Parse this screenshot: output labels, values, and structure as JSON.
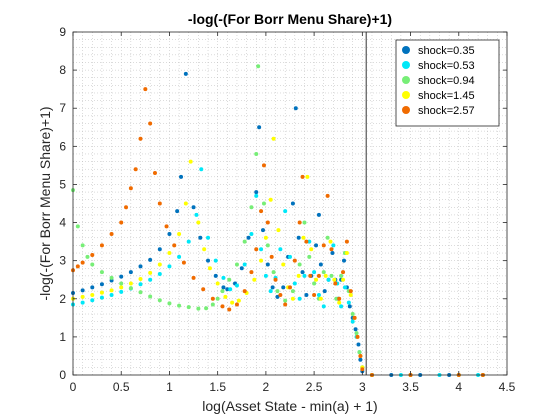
{
  "chart_data": {
    "type": "scatter",
    "title": "-log(-(For Borr Menu Share)+1)",
    "xlabel": "log(Asset State - min(a) + 1)",
    "ylabel": "-log(-(For Borr Menu Share)+1)",
    "xlim": [
      0,
      4.5
    ],
    "ylim": [
      0,
      9
    ],
    "xticks": [
      "0",
      "0.5",
      "1",
      "1.5",
      "2",
      "2.5",
      "3",
      "3.5",
      "4",
      "4.5"
    ],
    "yticks": [
      "0",
      "1",
      "2",
      "3",
      "4",
      "5",
      "6",
      "7",
      "8",
      "9"
    ],
    "grid": "minor dotted",
    "legend_position": "top-right",
    "reference_line_x": 3.04,
    "series": [
      {
        "name": "shock=0.35",
        "color": "#0072BD",
        "points": [
          [
            0.0,
            2.15
          ],
          [
            0.1,
            2.22
          ],
          [
            0.2,
            2.3
          ],
          [
            0.3,
            2.38
          ],
          [
            0.4,
            2.48
          ],
          [
            0.5,
            2.58
          ],
          [
            0.6,
            2.7
          ],
          [
            0.7,
            2.85
          ],
          [
            0.8,
            3.02
          ],
          [
            0.9,
            3.3
          ],
          [
            1.0,
            3.7
          ],
          [
            1.08,
            4.3
          ],
          [
            1.12,
            5.2
          ],
          [
            1.17,
            7.9
          ],
          [
            1.25,
            4.4
          ],
          [
            1.32,
            3.6
          ],
          [
            1.4,
            3.0
          ],
          [
            1.48,
            2.6
          ],
          [
            1.56,
            2.3
          ],
          [
            1.6,
            2.25
          ],
          [
            1.68,
            2.4
          ],
          [
            1.75,
            2.8
          ],
          [
            1.82,
            3.6
          ],
          [
            1.9,
            4.8
          ],
          [
            1.93,
            6.5
          ],
          [
            1.97,
            3.8
          ],
          [
            2.02,
            2.9
          ],
          [
            2.07,
            2.3
          ],
          [
            2.12,
            2.05
          ],
          [
            2.18,
            2.3
          ],
          [
            2.23,
            3.1
          ],
          [
            2.28,
            4.5
          ],
          [
            2.31,
            7.0
          ],
          [
            2.34,
            3.6
          ],
          [
            2.38,
            2.7
          ],
          [
            2.42,
            2.1
          ],
          [
            2.47,
            2.6
          ],
          [
            2.52,
            3.4
          ],
          [
            2.55,
            4.2
          ],
          [
            2.57,
            2.9
          ],
          [
            2.61,
            2.2
          ],
          [
            2.65,
            2.5
          ],
          [
            2.69,
            3.2
          ],
          [
            2.72,
            2.5
          ],
          [
            2.75,
            2.0
          ],
          [
            2.78,
            2.5
          ],
          [
            2.81,
            3.0
          ],
          [
            2.84,
            2.3
          ],
          [
            2.87,
            1.8
          ],
          [
            2.9,
            1.5
          ],
          [
            2.93,
            1.2
          ],
          [
            2.96,
            0.8
          ],
          [
            2.98,
            0.4
          ],
          [
            3.0,
            0.1
          ],
          [
            3.1,
            0.0
          ],
          [
            3.3,
            0.0
          ],
          [
            3.6,
            0.0
          ],
          [
            3.9,
            0.0
          ],
          [
            4.25,
            0.0
          ]
        ]
      },
      {
        "name": "shock=0.53",
        "color": "#00E8F8",
        "points": [
          [
            0.0,
            1.85
          ],
          [
            0.1,
            1.9
          ],
          [
            0.2,
            1.96
          ],
          [
            0.3,
            2.03
          ],
          [
            0.4,
            2.1
          ],
          [
            0.5,
            2.18
          ],
          [
            0.6,
            2.27
          ],
          [
            0.7,
            2.38
          ],
          [
            0.8,
            2.5
          ],
          [
            0.9,
            2.65
          ],
          [
            1.0,
            2.85
          ],
          [
            1.1,
            3.1
          ],
          [
            1.2,
            3.5
          ],
          [
            1.28,
            4.2
          ],
          [
            1.33,
            5.4
          ],
          [
            1.4,
            3.6
          ],
          [
            1.48,
            3.0
          ],
          [
            1.56,
            2.55
          ],
          [
            1.63,
            2.25
          ],
          [
            1.7,
            2.35
          ],
          [
            1.78,
            2.9
          ],
          [
            1.85,
            3.7
          ],
          [
            1.9,
            4.7
          ],
          [
            1.95,
            3.3
          ],
          [
            2.0,
            2.6
          ],
          [
            2.05,
            2.2
          ],
          [
            2.1,
            2.55
          ],
          [
            2.15,
            3.3
          ],
          [
            2.2,
            4.3
          ],
          [
            2.25,
            3.1
          ],
          [
            2.3,
            2.4
          ],
          [
            2.35,
            2.0
          ],
          [
            2.4,
            2.6
          ],
          [
            2.45,
            3.5
          ],
          [
            2.5,
            2.7
          ],
          [
            2.55,
            2.1
          ],
          [
            2.6,
            1.8
          ],
          [
            2.65,
            2.5
          ],
          [
            2.7,
            3.4
          ],
          [
            2.74,
            2.4
          ],
          [
            2.78,
            1.8
          ],
          [
            2.82,
            2.3
          ],
          [
            2.86,
            1.9
          ],
          [
            2.9,
            1.4
          ],
          [
            2.94,
            1.0
          ],
          [
            2.97,
            0.6
          ],
          [
            3.0,
            0.2
          ],
          [
            3.1,
            0.0
          ],
          [
            3.4,
            0.0
          ],
          [
            3.8,
            0.0
          ],
          [
            4.2,
            0.0
          ]
        ]
      },
      {
        "name": "shock=0.94",
        "color": "#77EE77",
        "points": [
          [
            0.0,
            4.85
          ],
          [
            0.05,
            3.9
          ],
          [
            0.1,
            3.4
          ],
          [
            0.15,
            3.1
          ],
          [
            0.2,
            2.9
          ],
          [
            0.3,
            2.7
          ],
          [
            0.4,
            2.55
          ],
          [
            0.5,
            2.4
          ],
          [
            0.6,
            2.28
          ],
          [
            0.7,
            2.17
          ],
          [
            0.8,
            2.06
          ],
          [
            0.9,
            1.96
          ],
          [
            1.0,
            1.88
          ],
          [
            1.1,
            1.82
          ],
          [
            1.2,
            1.78
          ],
          [
            1.3,
            1.74
          ],
          [
            1.38,
            1.75
          ],
          [
            1.45,
            1.85
          ],
          [
            1.5,
            2.0
          ],
          [
            1.55,
            2.2
          ],
          [
            1.62,
            2.5
          ],
          [
            1.7,
            2.9
          ],
          [
            1.78,
            3.5
          ],
          [
            1.85,
            4.4
          ],
          [
            1.9,
            5.8
          ],
          [
            1.92,
            8.1
          ],
          [
            1.98,
            4.5
          ],
          [
            2.02,
            3.4
          ],
          [
            2.08,
            2.7
          ],
          [
            2.12,
            2.2
          ],
          [
            2.2,
            1.95
          ],
          [
            2.28,
            2.2
          ],
          [
            2.35,
            2.9
          ],
          [
            2.4,
            4.0
          ],
          [
            2.45,
            3.1
          ],
          [
            2.5,
            2.4
          ],
          [
            2.55,
            2.0
          ],
          [
            2.6,
            2.7
          ],
          [
            2.64,
            3.6
          ],
          [
            2.68,
            2.6
          ],
          [
            2.73,
            2.0
          ],
          [
            2.78,
            2.6
          ],
          [
            2.82,
            3.2
          ],
          [
            2.86,
            2.2
          ],
          [
            2.9,
            1.6
          ],
          [
            2.94,
            1.1
          ],
          [
            2.97,
            0.6
          ],
          [
            3.0,
            0.2
          ],
          [
            3.1,
            0.0
          ],
          [
            3.5,
            0.0
          ],
          [
            4.0,
            0.0
          ],
          [
            4.25,
            0.0
          ]
        ]
      },
      {
        "name": "shock=1.45",
        "color": "#FFFF00",
        "points": [
          [
            0.0,
            2.0
          ],
          [
            0.1,
            2.05
          ],
          [
            0.2,
            2.1
          ],
          [
            0.3,
            2.16
          ],
          [
            0.4,
            2.22
          ],
          [
            0.5,
            2.3
          ],
          [
            0.6,
            2.4
          ],
          [
            0.7,
            2.52
          ],
          [
            0.8,
            2.68
          ],
          [
            0.9,
            2.9
          ],
          [
            1.0,
            3.2
          ],
          [
            1.1,
            3.7
          ],
          [
            1.17,
            4.5
          ],
          [
            1.22,
            5.6
          ],
          [
            1.3,
            4.0
          ],
          [
            1.36,
            3.3
          ],
          [
            1.42,
            2.8
          ],
          [
            1.5,
            2.4
          ],
          [
            1.58,
            2.05
          ],
          [
            1.65,
            1.9
          ],
          [
            1.72,
            1.95
          ],
          [
            1.8,
            2.15
          ],
          [
            1.88,
            2.5
          ],
          [
            1.95,
            3.0
          ],
          [
            2.0,
            3.6
          ],
          [
            2.05,
            4.6
          ],
          [
            2.08,
            6.2
          ],
          [
            2.13,
            3.8
          ],
          [
            2.18,
            2.9
          ],
          [
            2.23,
            2.3
          ],
          [
            2.28,
            2.0
          ],
          [
            2.34,
            2.6
          ],
          [
            2.39,
            3.6
          ],
          [
            2.43,
            5.2
          ],
          [
            2.47,
            3.3
          ],
          [
            2.52,
            2.5
          ],
          [
            2.57,
            2.0
          ],
          [
            2.62,
            2.6
          ],
          [
            2.67,
            3.5
          ],
          [
            2.71,
            2.5
          ],
          [
            2.76,
            1.9
          ],
          [
            2.8,
            2.5
          ],
          [
            2.84,
            3.2
          ],
          [
            2.88,
            2.1
          ],
          [
            2.92,
            1.5
          ],
          [
            2.95,
            1.0
          ],
          [
            2.98,
            0.5
          ],
          [
            3.0,
            0.2
          ],
          [
            3.1,
            0.0
          ],
          [
            3.5,
            0.0
          ],
          [
            4.0,
            0.0
          ],
          [
            4.25,
            0.0
          ]
        ]
      },
      {
        "name": "shock=2.57",
        "color": "#F06B00",
        "points": [
          [
            0.0,
            2.75
          ],
          [
            0.05,
            2.85
          ],
          [
            0.1,
            2.95
          ],
          [
            0.2,
            3.15
          ],
          [
            0.3,
            3.4
          ],
          [
            0.4,
            3.7
          ],
          [
            0.5,
            4.0
          ],
          [
            0.55,
            4.4
          ],
          [
            0.6,
            4.9
          ],
          [
            0.65,
            5.4
          ],
          [
            0.7,
            6.2
          ],
          [
            0.75,
            7.5
          ],
          [
            0.8,
            6.6
          ],
          [
            0.85,
            5.3
          ],
          [
            0.9,
            4.5
          ],
          [
            0.97,
            3.9
          ],
          [
            1.05,
            3.4
          ],
          [
            1.15,
            2.95
          ],
          [
            1.25,
            2.55
          ],
          [
            1.35,
            2.25
          ],
          [
            1.45,
            2.0
          ],
          [
            1.55,
            1.8
          ],
          [
            1.62,
            1.72
          ],
          [
            1.7,
            1.85
          ],
          [
            1.78,
            2.2
          ],
          [
            1.85,
            2.7
          ],
          [
            1.9,
            3.3
          ],
          [
            1.95,
            4.3
          ],
          [
            1.98,
            5.5
          ],
          [
            2.02,
            4.0
          ],
          [
            2.06,
            3.1
          ],
          [
            2.1,
            2.5
          ],
          [
            2.15,
            2.1
          ],
          [
            2.2,
            1.85
          ],
          [
            2.25,
            2.3
          ],
          [
            2.3,
            3.0
          ],
          [
            2.35,
            4.0
          ],
          [
            2.38,
            5.2
          ],
          [
            2.42,
            3.5
          ],
          [
            2.46,
            2.6
          ],
          [
            2.5,
            2.1
          ],
          [
            2.55,
            2.6
          ],
          [
            2.6,
            3.4
          ],
          [
            2.64,
            4.7
          ],
          [
            2.68,
            3.3
          ],
          [
            2.72,
            2.4
          ],
          [
            2.76,
            2.0
          ],
          [
            2.8,
            2.7
          ],
          [
            2.84,
            3.5
          ],
          [
            2.88,
            2.2
          ],
          [
            2.92,
            1.5
          ],
          [
            2.95,
            1.0
          ],
          [
            2.98,
            0.5
          ],
          [
            3.0,
            0.15
          ],
          [
            3.1,
            0.0
          ],
          [
            3.5,
            0.0
          ],
          [
            4.0,
            0.0
          ],
          [
            4.25,
            0.0
          ]
        ]
      }
    ]
  }
}
